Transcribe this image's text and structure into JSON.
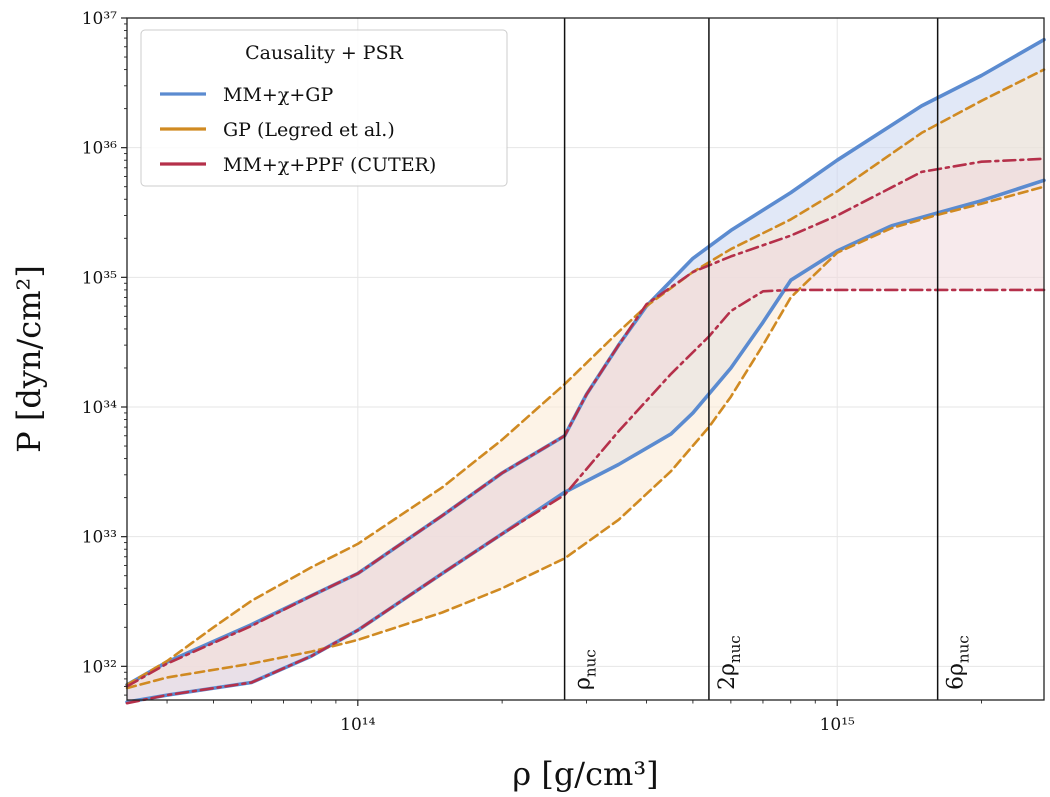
{
  "chart_data": {
    "type": "area",
    "x_scale": "log",
    "y_scale": "log",
    "xlim": [
      33000000000000.0,
      2700000000000000.0
    ],
    "ylim": [
      5.5e+31,
      1e+37
    ],
    "xlabel": "ρ [g/cm³]",
    "ylabel": "P [dyn/cm²]",
    "grid": true,
    "x_ticks": [
      {
        "value": 100000000000000.0,
        "label": "10¹⁴"
      },
      {
        "value": 1000000000000000.0,
        "label": "10¹⁵"
      }
    ],
    "y_ticks": [
      {
        "value": 1e+32,
        "label": "10³²"
      },
      {
        "value": 1e+33,
        "label": "10³³"
      },
      {
        "value": 1e+34,
        "label": "10³⁴"
      },
      {
        "value": 1e+35,
        "label": "10³⁵"
      },
      {
        "value": 1e+36,
        "label": "10³⁶"
      },
      {
        "value": 1e+37,
        "label": "10³⁷"
      }
    ],
    "legend": {
      "title": "Causality + PSR",
      "placement": "top-left",
      "entries": [
        "MM+χ+GP",
        "GP (Legred et al.)",
        "MM+χ+PPF (CUTER)"
      ]
    },
    "vertical_lines": [
      {
        "x": 270000000000000.0,
        "label": "ρnuc",
        "label_main": "ρ",
        "label_sub": "nuc"
      },
      {
        "x": 540000000000000.0,
        "label": "2ρnuc",
        "label_main": "2ρ",
        "label_sub": "nuc"
      },
      {
        "x": 1620000000000000.0,
        "label": "6ρnuc",
        "label_main": "6ρ",
        "label_sub": "nuc"
      }
    ],
    "series": [
      {
        "name": "MM+χ+GP",
        "color": "#5b8bd0",
        "fill": "#c8d6f0",
        "style": "solid",
        "upper": [
          [
            33000000000000.0,
            7.2e+31
          ],
          [
            40000000000000.0,
            1.08e+32
          ],
          [
            60000000000000.0,
            2.1e+32
          ],
          [
            80000000000000.0,
            3.5e+32
          ],
          [
            100000000000000.0,
            5.2e+32
          ],
          [
            150000000000000.0,
            1.45e+33
          ],
          [
            200000000000000.0,
            3.1e+33
          ],
          [
            270000000000000.0,
            6e+33
          ],
          [
            300000000000000.0,
            1.25e+34
          ],
          [
            350000000000000.0,
            3e+34
          ],
          [
            400000000000000.0,
            6e+34
          ],
          [
            500000000000000.0,
            1.4e+35
          ],
          [
            600000000000000.0,
            2.3e+35
          ],
          [
            800000000000000.0,
            4.5e+35
          ],
          [
            1000000000000000.0,
            8e+35
          ],
          [
            1500000000000000.0,
            2.1e+36
          ],
          [
            2000000000000000.0,
            3.6e+36
          ],
          [
            2700000000000000.0,
            6.8e+36
          ]
        ],
        "lower": [
          [
            33000000000000.0,
            5.3e+31
          ],
          [
            40000000000000.0,
            6e+31
          ],
          [
            60000000000000.0,
            7.5e+31
          ],
          [
            80000000000000.0,
            1.2e+32
          ],
          [
            100000000000000.0,
            1.9e+32
          ],
          [
            150000000000000.0,
            5.2e+32
          ],
          [
            200000000000000.0,
            1.05e+33
          ],
          [
            270000000000000.0,
            2.2e+33
          ],
          [
            350000000000000.0,
            3.6e+33
          ],
          [
            450000000000000.0,
            6.2e+33
          ],
          [
            500000000000000.0,
            9e+33
          ],
          [
            600000000000000.0,
            2e+34
          ],
          [
            700000000000000.0,
            4.5e+34
          ],
          [
            800000000000000.0,
            9.5e+34
          ],
          [
            1000000000000000.0,
            1.6e+35
          ],
          [
            1300000000000000.0,
            2.5e+35
          ],
          [
            1600000000000000.0,
            3.1e+35
          ],
          [
            2000000000000000.0,
            3.9e+35
          ],
          [
            2700000000000000.0,
            5.6e+35
          ]
        ]
      },
      {
        "name": "GP (Legred et al.)",
        "color": "#d08a22",
        "fill": "#fbead4",
        "style": "dashed",
        "upper": [
          [
            33000000000000.0,
            7.2e+31
          ],
          [
            40000000000000.0,
            1.1e+32
          ],
          [
            50000000000000.0,
            2e+32
          ],
          [
            60000000000000.0,
            3.2e+32
          ],
          [
            80000000000000.0,
            5.8e+32
          ],
          [
            100000000000000.0,
            8.8e+32
          ],
          [
            150000000000000.0,
            2.4e+33
          ],
          [
            200000000000000.0,
            5.6e+33
          ],
          [
            270000000000000.0,
            1.5e+34
          ],
          [
            350000000000000.0,
            3.8e+34
          ],
          [
            400000000000000.0,
            6e+34
          ],
          [
            500000000000000.0,
            1.1e+35
          ],
          [
            600000000000000.0,
            1.65e+35
          ],
          [
            800000000000000.0,
            2.8e+35
          ],
          [
            1000000000000000.0,
            4.6e+35
          ],
          [
            1500000000000000.0,
            1.3e+36
          ],
          [
            2000000000000000.0,
            2.3e+36
          ],
          [
            2700000000000000.0,
            4e+36
          ]
        ],
        "lower": [
          [
            33000000000000.0,
            6.8e+31
          ],
          [
            40000000000000.0,
            8.2e+31
          ],
          [
            60000000000000.0,
            1.05e+32
          ],
          [
            80000000000000.0,
            1.3e+32
          ],
          [
            100000000000000.0,
            1.6e+32
          ],
          [
            150000000000000.0,
            2.6e+32
          ],
          [
            200000000000000.0,
            4e+32
          ],
          [
            270000000000000.0,
            6.8e+32
          ],
          [
            350000000000000.0,
            1.35e+33
          ],
          [
            450000000000000.0,
            3.2e+33
          ],
          [
            540000000000000.0,
            7e+33
          ],
          [
            600000000000000.0,
            1.2e+34
          ],
          [
            700000000000000.0,
            3e+34
          ],
          [
            800000000000000.0,
            7e+34
          ],
          [
            1000000000000000.0,
            1.55e+35
          ],
          [
            1300000000000000.0,
            2.4e+35
          ],
          [
            1600000000000000.0,
            3e+35
          ],
          [
            2000000000000000.0,
            3.7e+35
          ],
          [
            2700000000000000.0,
            5e+35
          ]
        ]
      },
      {
        "name": "MM+χ+PPF (CUTER)",
        "color": "#b5304a",
        "fill": "#f0d8dd",
        "style": "dashdot",
        "upper": [
          [
            33000000000000.0,
            7e+31
          ],
          [
            40000000000000.0,
            1.05e+32
          ],
          [
            60000000000000.0,
            2.05e+32
          ],
          [
            80000000000000.0,
            3.5e+32
          ],
          [
            100000000000000.0,
            5.2e+32
          ],
          [
            150000000000000.0,
            1.45e+33
          ],
          [
            200000000000000.0,
            3.1e+33
          ],
          [
            270000000000000.0,
            6e+33
          ],
          [
            300000000000000.0,
            1.25e+34
          ],
          [
            350000000000000.0,
            3e+34
          ],
          [
            400000000000000.0,
            6.2e+34
          ],
          [
            500000000000000.0,
            1.1e+35
          ],
          [
            600000000000000.0,
            1.45e+35
          ],
          [
            800000000000000.0,
            2.1e+35
          ],
          [
            1000000000000000.0,
            3e+35
          ],
          [
            1500000000000000.0,
            6.5e+35
          ],
          [
            2000000000000000.0,
            7.8e+35
          ],
          [
            2700000000000000.0,
            8.2e+35
          ]
        ],
        "lower": [
          [
            33000000000000.0,
            5.2e+31
          ],
          [
            40000000000000.0,
            6e+31
          ],
          [
            60000000000000.0,
            7.5e+31
          ],
          [
            80000000000000.0,
            1.2e+32
          ],
          [
            100000000000000.0,
            1.9e+32
          ],
          [
            150000000000000.0,
            5.2e+32
          ],
          [
            200000000000000.0,
            1.05e+33
          ],
          [
            270000000000000.0,
            2.1e+33
          ],
          [
            350000000000000.0,
            6.5e+33
          ],
          [
            450000000000000.0,
            1.8e+34
          ],
          [
            540000000000000.0,
            3.5e+34
          ],
          [
            600000000000000.0,
            5.5e+34
          ],
          [
            700000000000000.0,
            7.8e+34
          ],
          [
            800000000000000.0,
            8e+34
          ],
          [
            1000000000000000.0,
            8e+34
          ],
          [
            1500000000000000.0,
            8e+34
          ],
          [
            2000000000000000.0,
            8e+34
          ],
          [
            2700000000000000.0,
            8e+34
          ]
        ]
      }
    ]
  }
}
